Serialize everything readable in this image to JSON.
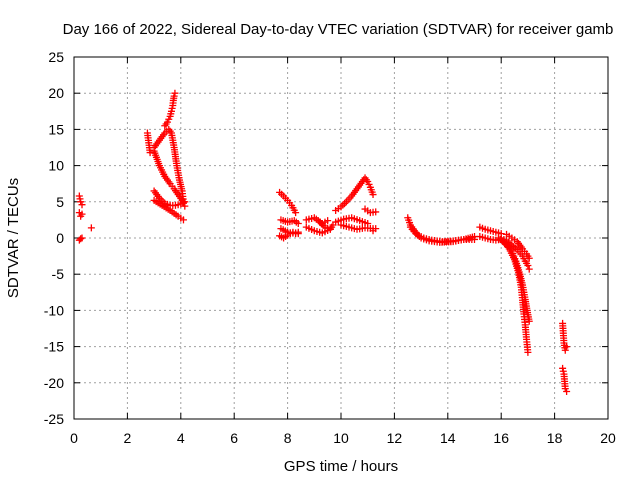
{
  "chart_data": {
    "type": "scatter",
    "title": "Day 166 of 2022, Sidereal Day-to-day VTEC variation (SDTVAR) for receiver gamb",
    "xlabel": "GPS time / hours",
    "ylabel": "SDTVAR / TECUs",
    "xlim": [
      0,
      20
    ],
    "ylim": [
      -25,
      25
    ],
    "xticks": [
      0,
      2,
      4,
      6,
      8,
      10,
      12,
      14,
      16,
      18,
      20
    ],
    "yticks": [
      -25,
      -20,
      -15,
      -10,
      -5,
      0,
      5,
      10,
      15,
      20,
      25
    ],
    "grid": true,
    "marker": "+",
    "color": "#ff0000",
    "series": [
      {
        "name": "SDTVAR",
        "segments": [
          {
            "x": [
              0.2,
              0.25,
              0.3
            ],
            "y": [
              5.8,
              5.0,
              4.6
            ]
          },
          {
            "x": [
              0.2,
              0.25,
              0.3
            ],
            "y": [
              3.5,
              3.0,
              3.3
            ]
          },
          {
            "x": [
              0.2,
              0.25,
              0.3
            ],
            "y": [
              -0.3,
              -0.1,
              0.0
            ]
          },
          {
            "x": [
              0.65
            ],
            "y": [
              1.4
            ]
          },
          {
            "x": [
              2.75,
              2.85
            ],
            "y": [
              14.5,
              11.8
            ]
          },
          {
            "x": [
              3.4,
              3.5,
              3.6,
              3.65,
              3.7,
              3.72,
              3.75,
              3.78
            ],
            "y": [
              15.5,
              16.0,
              16.8,
              17.5,
              18.3,
              19.0,
              19.6,
              20.0
            ]
          },
          {
            "x": [
              3.0,
              3.2,
              3.4,
              3.55,
              3.65,
              3.75,
              3.85,
              3.95,
              4.05,
              4.1
            ],
            "y": [
              12.5,
              13.5,
              14.5,
              15.0,
              14.5,
              12.5,
              10.0,
              8.0,
              6.5,
              5.0
            ]
          },
          {
            "x": [
              3.0,
              3.2,
              3.4,
              3.6,
              3.75,
              3.9,
              4.05,
              4.15
            ],
            "y": [
              12.0,
              10.0,
              8.5,
              7.5,
              6.8,
              6.0,
              5.2,
              4.4
            ]
          },
          {
            "x": [
              3.0,
              3.2,
              3.4,
              3.6,
              3.8,
              4.0,
              4.15
            ],
            "y": [
              6.5,
              5.5,
              4.8,
              4.5,
              4.5,
              4.7,
              5.0
            ]
          },
          {
            "x": [
              3.0,
              3.3,
              3.6,
              3.9,
              4.1
            ],
            "y": [
              5.2,
              4.5,
              3.8,
              3.0,
              2.5
            ]
          },
          {
            "x": [
              7.7,
              7.85,
              8.0,
              8.15,
              8.3
            ],
            "y": [
              6.3,
              5.8,
              5.2,
              4.5,
              3.5
            ]
          },
          {
            "x": [
              7.75,
              8.0,
              8.25,
              8.4
            ],
            "y": [
              2.5,
              2.2,
              2.4,
              2.0
            ]
          },
          {
            "x": [
              7.75,
              8.0,
              8.3,
              8.4
            ],
            "y": [
              1.3,
              0.8,
              0.6,
              0.8
            ]
          },
          {
            "x": [
              7.7,
              7.85,
              8.0,
              8.2,
              8.4
            ],
            "y": [
              0.3,
              0.0,
              0.4,
              0.8,
              0.6
            ]
          },
          {
            "x": [
              8.7,
              9.0,
              9.3,
              9.5
            ],
            "y": [
              2.5,
              2.8,
              2.0,
              2.4
            ]
          },
          {
            "x": [
              8.7,
              9.0,
              9.3,
              9.6
            ],
            "y": [
              1.5,
              1.0,
              0.7,
              1.2
            ]
          },
          {
            "x": [
              9.2,
              9.4,
              9.6,
              9.7
            ],
            "y": [
              2.2,
              1.5,
              1.2,
              1.8
            ]
          },
          {
            "x": [
              9.8,
              10.0,
              10.2,
              10.4,
              10.6,
              10.8,
              10.9,
              11.0,
              11.1,
              11.2
            ],
            "y": [
              3.8,
              4.3,
              5.0,
              5.8,
              6.8,
              7.8,
              8.3,
              7.8,
              7.0,
              6.0
            ]
          },
          {
            "x": [
              10.0,
              10.3,
              10.6,
              10.9,
              11.2
            ],
            "y": [
              1.8,
              1.5,
              1.2,
              1.4,
              1.3
            ]
          },
          {
            "x": [
              9.8,
              10.1,
              10.4,
              10.7,
              11.0
            ],
            "y": [
              2.2,
              2.6,
              2.8,
              2.4,
              2.0
            ]
          },
          {
            "x": [
              10.9,
              11.1,
              11.3
            ],
            "y": [
              4.0,
              3.5,
              3.6
            ]
          },
          {
            "x": [
              11.2,
              11.3
            ],
            "y": [
              1.0,
              1.3
            ]
          },
          {
            "x": [
              12.5,
              12.6,
              12.75,
              12.9,
              13.1,
              13.4,
              13.8,
              14.2,
              14.6,
              15.0
            ],
            "y": [
              2.8,
              1.8,
              1.0,
              0.4,
              0.0,
              -0.3,
              -0.5,
              -0.4,
              -0.2,
              -0.2
            ]
          },
          {
            "x": [
              12.6,
              12.8,
              13.0,
              13.3,
              13.7,
              14.2,
              14.6,
              15.0
            ],
            "y": [
              1.5,
              0.6,
              0.0,
              -0.4,
              -0.6,
              -0.5,
              -0.2,
              0.2
            ]
          },
          {
            "x": [
              15.2,
              15.4,
              15.6,
              15.8,
              16.0
            ],
            "y": [
              1.5,
              1.2,
              1.0,
              0.8,
              0.6
            ]
          },
          {
            "x": [
              15.2,
              15.4,
              15.6,
              15.8,
              16.0
            ],
            "y": [
              0.2,
              0.0,
              -0.2,
              -0.3,
              -0.2
            ]
          },
          {
            "x": [
              15.9,
              16.1,
              16.3,
              16.5,
              16.65,
              16.75,
              16.8,
              16.85,
              16.9,
              16.95,
              17.0
            ],
            "y": [
              0.0,
              -0.6,
              -1.5,
              -3.0,
              -4.8,
              -6.8,
              -8.6,
              -10.5,
              -12.0,
              -14.0,
              -15.8
            ]
          },
          {
            "x": [
              16.0,
              16.2,
              16.4,
              16.55,
              16.7,
              16.8,
              16.9,
              16.97,
              17.05
            ],
            "y": [
              -0.2,
              -0.8,
              -1.8,
              -3.2,
              -5.0,
              -6.5,
              -8.5,
              -10.0,
              -11.5
            ]
          },
          {
            "x": [
              16.0,
              16.2,
              16.4,
              16.6,
              16.8,
              16.9,
              17.0,
              17.05
            ],
            "y": [
              0.0,
              -0.4,
              -1.0,
              -1.6,
              -2.5,
              -3.2,
              -3.8,
              -4.3
            ]
          },
          {
            "x": [
              16.2,
              16.4,
              16.6,
              16.8,
              16.95,
              17.05
            ],
            "y": [
              0.5,
              0.0,
              -0.5,
              -1.5,
              -2.2,
              -2.8
            ]
          },
          {
            "x": [
              18.3,
              18.35,
              18.4,
              18.45
            ],
            "y": [
              -11.8,
              -14.5,
              -15.5,
              -15.0
            ]
          },
          {
            "x": [
              18.3,
              18.35,
              18.4,
              18.45
            ],
            "y": [
              -18.0,
              -18.8,
              -20.8,
              -21.2
            ]
          }
        ]
      }
    ]
  }
}
